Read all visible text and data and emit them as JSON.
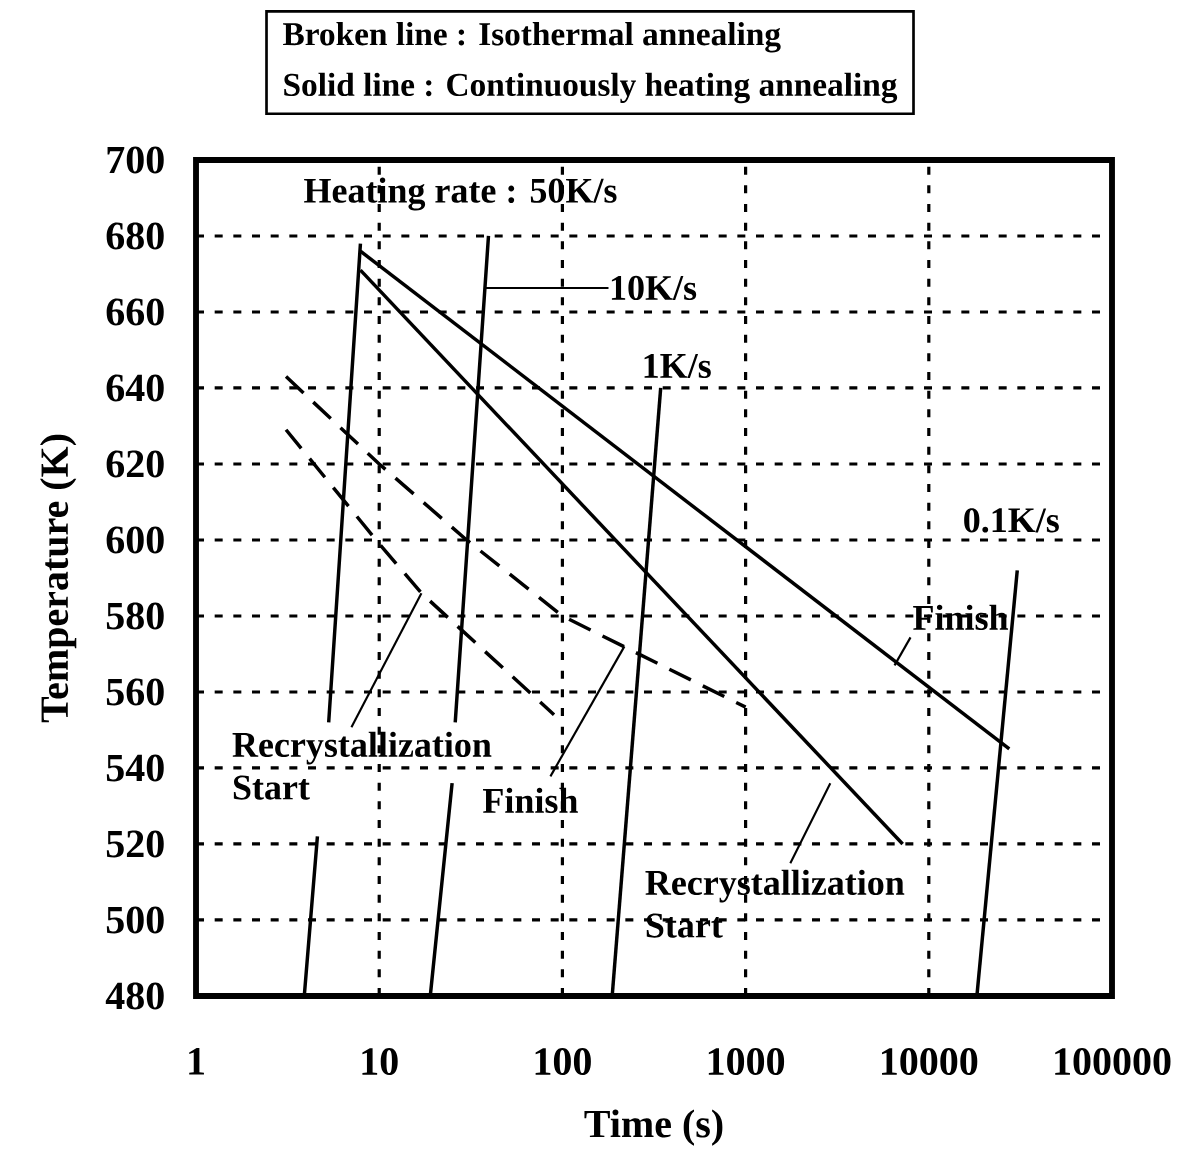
{
  "chart_data": {
    "type": "line",
    "xlabel": "Time (s)",
    "ylabel": "Temperature (K)",
    "log": "x",
    "grid": true,
    "xlim": [
      1,
      100000
    ],
    "ylim": [
      480,
      700
    ],
    "xticks": [
      1,
      10,
      100,
      1000,
      10000,
      100000
    ],
    "yticks": [
      480,
      500,
      520,
      540,
      560,
      580,
      600,
      620,
      640,
      660,
      680,
      700
    ],
    "series": [
      {
        "color": "#000000",
        "line_style": "solid",
        "x": [
          7.9,
          27500
        ],
        "values": [
          676,
          545
        ]
      },
      {
        "color": "#000000",
        "line_style": "solid",
        "x": [
          7.9,
          7200
        ],
        "values": [
          671,
          520
        ]
      },
      {
        "color": "#000000",
        "line_style": "dashed",
        "x": [
          3.1,
          10,
          30,
          100,
          1000
        ],
        "values": [
          643,
          620,
          600,
          580,
          556
        ]
      },
      {
        "color": "#000000",
        "line_style": "dashed",
        "x": [
          3.1,
          10,
          17,
          90
        ],
        "values": [
          629,
          599,
          586,
          554
        ]
      },
      {
        "color": "#000000",
        "line_style": "solid",
        "x": [
          3.9,
          4.6,
          5,
          5.3,
          7.9
        ],
        "values": [
          480,
          522,
          null,
          552,
          678
        ]
      },
      {
        "color": "#000000",
        "line_style": "solid",
        "x": [
          19,
          25,
          25.5,
          26,
          39.5
        ],
        "values": [
          480,
          536,
          null,
          552,
          680
        ]
      },
      {
        "color": "#000000",
        "line_style": "solid",
        "x": [
          187,
          344
        ],
        "values": [
          480,
          640
        ]
      },
      {
        "color": "#000000",
        "line_style": "solid",
        "x": [
          18300,
          30400
        ],
        "values": [
          480,
          592
        ]
      }
    ],
    "annotations": [
      {
        "text": "Heating rate : 50K/s",
        "x": 7.9,
        "y": 680
      },
      "10K/s",
      {
        "text": "1K/s",
        "x": 344,
        "y": 640
      },
      {
        "text": "0.1K/s",
        "x": 30400,
        "y": 592
      },
      {
        "text": "Finish",
        "x": 6500,
        "y": 567
      },
      {
        "text": "Recrystallization Start",
        "x": 17,
        "y": 586
      },
      {
        "text": "Finish",
        "x": 218,
        "y": 572
      },
      {
        "text": "Recrystallization Start",
        "x": 2900,
        "y": 536
      },
      "Broken line : Isothermal annealing",
      "Solid line : Continuously heating annealing"
    ]
  }
}
